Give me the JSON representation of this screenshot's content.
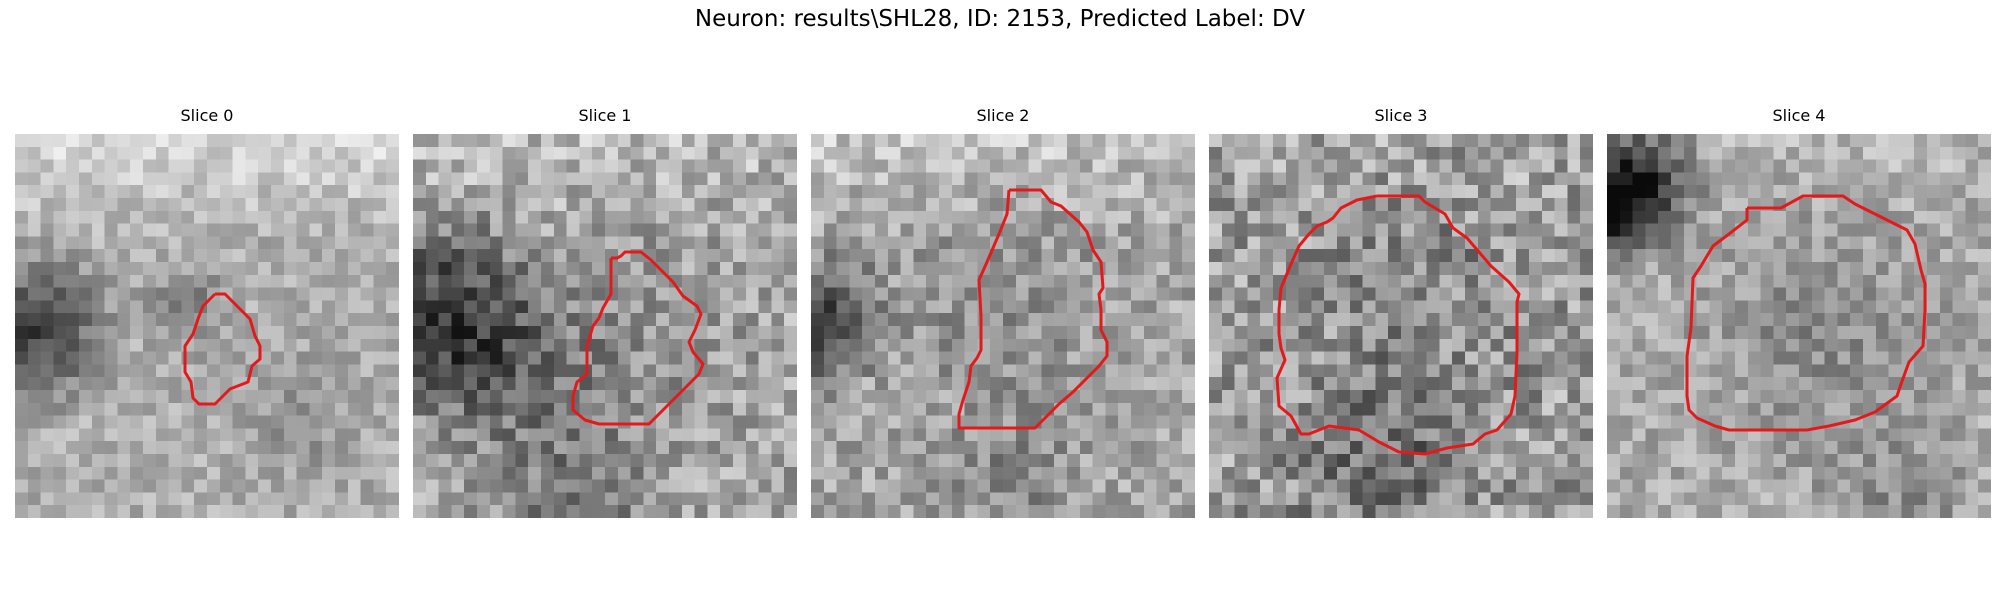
{
  "figure": {
    "title": "Neuron: results\\SHL28, ID: 2153, Predicted Label: DV"
  },
  "panels": [
    {
      "title": "Slice 0"
    },
    {
      "title": "Slice 1"
    },
    {
      "title": "Slice 2"
    },
    {
      "title": "Slice 3"
    },
    {
      "title": "Slice 4"
    }
  ],
  "colors": {
    "contour": "#e31a1c",
    "background": "#ffffff",
    "colormap": "grayscale"
  }
}
